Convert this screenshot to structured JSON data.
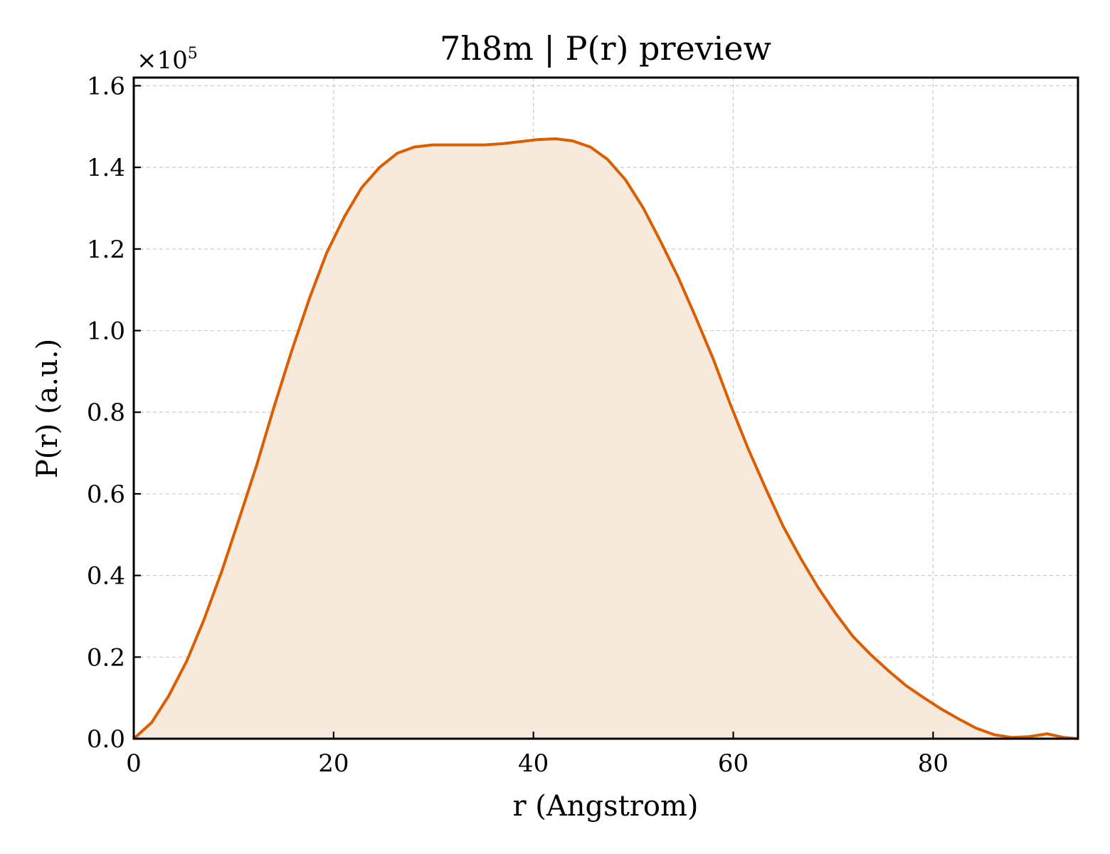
{
  "chart_data": {
    "type": "area",
    "title": "7h8m | P(r) preview",
    "xlabel": "r (Angstrom)",
    "ylabel": "P(r) (a.u.)",
    "y_multiplier": {
      "prefix": "×10",
      "exponent": "5"
    },
    "xlim": [
      0,
      94.5
    ],
    "ylim": [
      0,
      1.62
    ],
    "xticks": [
      0,
      20,
      40,
      60,
      80
    ],
    "xtick_labels": [
      "0",
      "20",
      "40",
      "60",
      "80"
    ],
    "yticks": [
      0.0,
      0.2,
      0.4,
      0.6,
      0.8,
      1.0,
      1.2,
      1.4,
      1.6
    ],
    "ytick_labels": [
      "0.0",
      "0.2",
      "0.4",
      "0.6",
      "0.8",
      "1.0",
      "1.2",
      "1.4",
      "1.6"
    ],
    "grid": true,
    "colors": {
      "line": "#d95f02",
      "fill": "#f8e9dd"
    },
    "series": [
      {
        "x": [
          0,
          1.8,
          3.5,
          5.3,
          7.0,
          8.8,
          10.5,
          12.3,
          14.0,
          15.8,
          17.6,
          19.3,
          21.1,
          22.8,
          24.6,
          26.4,
          28.1,
          29.9,
          31.6,
          33.4,
          35.1,
          36.9,
          38.7,
          40.4,
          42.2,
          43.9,
          45.7,
          47.4,
          49.2,
          51.0,
          52.7,
          54.5,
          56.2,
          58.0,
          59.7,
          61.5,
          63.3,
          65.0,
          66.8,
          68.5,
          70.3,
          72.0,
          73.8,
          75.6,
          77.3,
          79.1,
          80.8,
          82.6,
          84.3,
          86.1,
          87.9,
          89.6,
          91.4,
          93.1,
          94.5
        ],
        "values": [
          0.0,
          0.04,
          0.105,
          0.19,
          0.29,
          0.41,
          0.535,
          0.67,
          0.81,
          0.95,
          1.08,
          1.19,
          1.28,
          1.35,
          1.4,
          1.435,
          1.45,
          1.455,
          1.455,
          1.455,
          1.455,
          1.458,
          1.463,
          1.468,
          1.47,
          1.465,
          1.45,
          1.42,
          1.37,
          1.3,
          1.22,
          1.13,
          1.035,
          0.93,
          0.82,
          0.71,
          0.61,
          0.52,
          0.44,
          0.37,
          0.305,
          0.25,
          0.205,
          0.165,
          0.13,
          0.1,
          0.073,
          0.048,
          0.026,
          0.01,
          0.003,
          0.005,
          0.012,
          0.003,
          0.0
        ]
      }
    ]
  }
}
